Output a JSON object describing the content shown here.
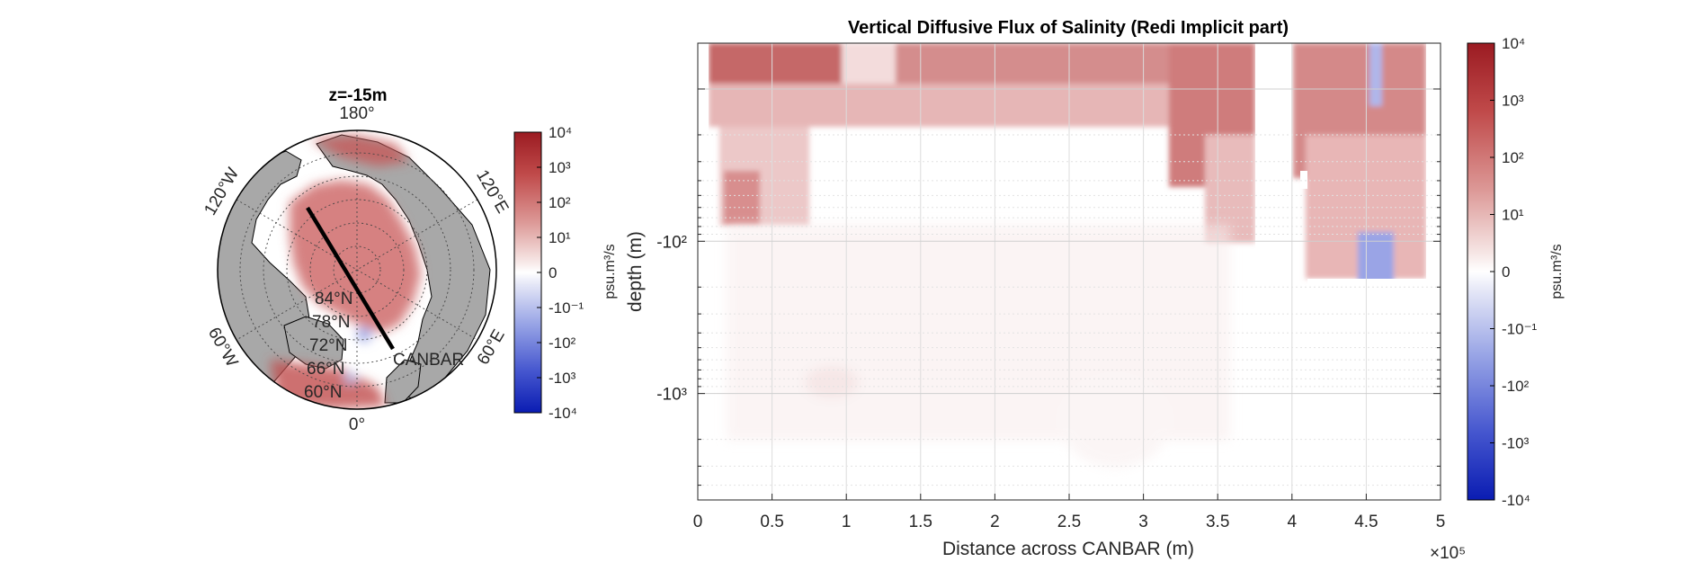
{
  "figure": {
    "map_panel": {
      "title": "z=-15m",
      "lon_labels": [
        {
          "text": "180°",
          "angle": 0
        },
        {
          "text": "120°E",
          "angle": 60
        },
        {
          "text": "60°E",
          "angle": 120
        },
        {
          "text": "0°",
          "angle": 180
        },
        {
          "text": "60°W",
          "angle": 240
        },
        {
          "text": "120°W",
          "angle": 300
        }
      ],
      "lat_labels": [
        "84°N",
        "78°N",
        "72°N",
        "66°N",
        "60°N"
      ],
      "section_label": "CANBAR",
      "colorbar": {
        "label": "psu.m³/s",
        "ticks": [
          "10⁴",
          "10³",
          "10²",
          "10¹",
          "0",
          "-10⁻¹",
          "-10²",
          "-10³",
          "-10⁴"
        ]
      }
    },
    "section_panel": {
      "colorbar": {
        "label": "psu.m³/s",
        "ticks": [
          "10⁴",
          "10³",
          "10²",
          "10¹",
          "0",
          "-10⁻¹",
          "-10²",
          "-10³",
          "-10⁴"
        ]
      }
    },
    "colors": {
      "positive": "#a01c24",
      "zero": "#ffffff",
      "negative": "#0a1fb5",
      "land": "#a8a8a8",
      "section_line": "#000000"
    }
  },
  "chart_data": {
    "type": "heatmap",
    "title": "Vertical Diffusive Flux of Salinity (Redi Implicit part)",
    "xlabel": "Distance across CANBAR (m)",
    "ylabel": "depth (m)",
    "x_scale_label": "×10⁵",
    "x_ticks": [
      0,
      0.5,
      1,
      1.5,
      2,
      2.5,
      3,
      3.5,
      4,
      4.5,
      5
    ],
    "x_tick_labels": [
      "0",
      "0.5",
      "1",
      "1.5",
      "2",
      "2.5",
      "3",
      "3.5",
      "4",
      "4.5",
      "5"
    ],
    "xlim": [
      0,
      500000
    ],
    "y_scale": "log (negative depth)",
    "y_ticks": [
      -100,
      -1000
    ],
    "y_tick_labels": [
      "-10²",
      "-10³"
    ],
    "ylim": [
      -5,
      -5000
    ],
    "grid": true,
    "colorbar_scale": "symmetric log",
    "colorbar_range": [
      -10000,
      10000
    ],
    "features": [
      {
        "region": "surface layer 0-40m",
        "x_range": [
          10000,
          377000
        ],
        "value": "10² to 10³ (red)"
      },
      {
        "region": "eastern band",
        "x_range": [
          400000,
          490000
        ],
        "value": "10¹ to 10² (red)"
      },
      {
        "region": "negative patch near surface",
        "x_range": [
          455000,
          470000
        ],
        "value": "-10¹ (blue)"
      },
      {
        "region": "negative patch 200-400m",
        "x_range": [
          450000,
          475000
        ],
        "value": "-10¹ to -10² (blue)"
      },
      {
        "region": "interior",
        "x_range": [
          20000,
          370000
        ],
        "value": "~0 to 10⁰ (near white)"
      }
    ]
  }
}
